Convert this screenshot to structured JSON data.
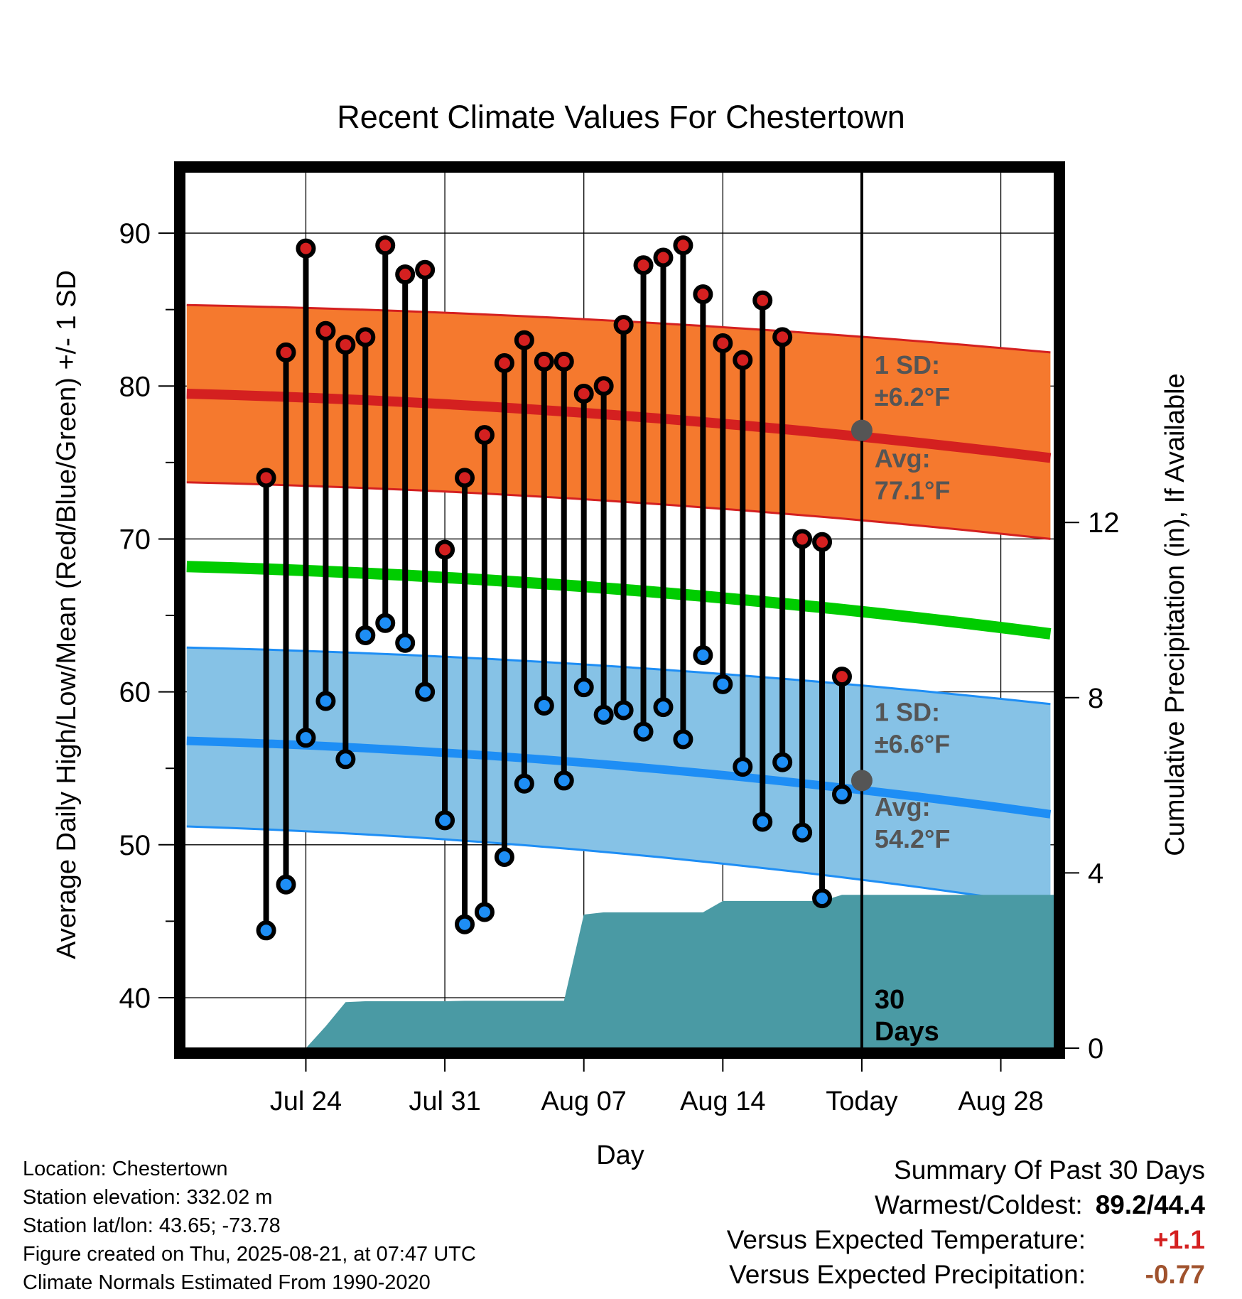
{
  "chart_data": {
    "type": "line",
    "title": "Recent Climate Values For Chestertown",
    "xlabel": "Day",
    "ylabel_left": "Average Daily High/Low/Mean (Red/Blue/Green) +/- 1 SD",
    "ylabel_right": "Cumulative Precipitation (in), If Available",
    "y_left_range": [
      36.7,
      94
    ],
    "y_right_range": [
      0,
      20
    ],
    "y_left_ticks": [
      40,
      50,
      60,
      70,
      80,
      90
    ],
    "y_right_ticks": [
      0,
      4,
      8,
      12
    ],
    "x_range_days": [
      -34.1,
      9.7
    ],
    "x_ticks": [
      {
        "label": "Jul 24",
        "day": -28
      },
      {
        "label": "Jul 31",
        "day": -21
      },
      {
        "label": "Aug 07",
        "day": -14
      },
      {
        "label": "Aug 14",
        "day": -7
      },
      {
        "label": "Today",
        "day": 0
      },
      {
        "label": "Aug 28",
        "day": 7
      }
    ],
    "today_date": "2025-08-21",
    "daily": {
      "day": [
        -30,
        -29,
        -28,
        -27,
        -26,
        -25,
        -24,
        -23,
        -22,
        -21,
        -20,
        -19,
        -18,
        -17,
        -16,
        -15,
        -14,
        -13,
        -12,
        -11,
        -10,
        -9,
        -8,
        -7,
        -6,
        -5,
        -4,
        -3,
        -2,
        -1
      ],
      "high": [
        74.0,
        82.2,
        89.0,
        83.6,
        82.7,
        83.2,
        89.2,
        87.3,
        87.6,
        69.3,
        74.0,
        76.8,
        81.5,
        83.0,
        81.6,
        81.6,
        79.5,
        80.0,
        84.0,
        87.9,
        88.4,
        89.2,
        86.0,
        82.8,
        81.7,
        85.6,
        83.2,
        70.0,
        69.8,
        61.0
      ],
      "low": [
        44.4,
        47.4,
        57.0,
        59.4,
        55.6,
        63.7,
        64.5,
        63.2,
        60.0,
        51.6,
        44.8,
        45.6,
        49.2,
        54.0,
        59.1,
        54.2,
        60.3,
        58.5,
        58.8,
        57.4,
        59.0,
        56.9,
        62.4,
        60.5,
        55.1,
        51.5,
        55.4,
        50.8,
        46.5,
        53.3
      ]
    },
    "normals": {
      "day": [
        -34,
        9.5
      ],
      "avg_high": [
        79.5,
        75.3
      ],
      "avg_high_plus_sd": [
        85.3,
        82.2
      ],
      "avg_high_minus_sd": [
        73.7,
        70.0
      ],
      "avg_mean": [
        68.2,
        63.8
      ],
      "avg_low": [
        56.8,
        52.0
      ],
      "avg_low_plus_sd": [
        62.9,
        59.2
      ],
      "avg_low_minus_sd": [
        51.2,
        46.0
      ]
    },
    "precip_cumulative": {
      "day": [
        -34.1,
        -29,
        -28,
        -27,
        -26,
        -25,
        -24,
        -23,
        -22,
        -21,
        -20,
        -19,
        -18,
        -17,
        -16,
        -15,
        -14,
        -13,
        -12,
        -11,
        -10,
        -9,
        -8,
        -7,
        -6,
        -5,
        -4,
        -3,
        -2,
        -1,
        9.7
      ],
      "value": [
        0,
        0,
        0,
        0.5,
        1.05,
        1.07,
        1.07,
        1.07,
        1.07,
        1.07,
        1.08,
        1.08,
        1.08,
        1.08,
        1.08,
        1.08,
        3.05,
        3.1,
        3.1,
        3.1,
        3.1,
        3.1,
        3.1,
        3.36,
        3.36,
        3.36,
        3.36,
        3.36,
        3.36,
        3.5,
        3.5
      ]
    },
    "annotations": {
      "high_sd_label": "1 SD:",
      "high_sd_value": "±6.2°F",
      "high_avg_label": "Avg:",
      "high_avg_value": "77.1°F",
      "low_sd_label": "1 SD:",
      "low_sd_value": "±6.6°F",
      "low_avg_label": "Avg:",
      "low_avg_value": "54.2°F",
      "period_label_1": "30",
      "period_label_2": "Days"
    },
    "today_markers": {
      "avg_high": 77.1,
      "avg_low": 54.2
    },
    "colors": {
      "high_band": "#f5792e",
      "high_line": "#d42020",
      "mean_line": "#00cc00",
      "low_band": "#86c2e6",
      "low_line": "#1e8ef5",
      "precip": "#4a9aa4",
      "high_dot": "#d42020",
      "low_dot": "#1e8ef5",
      "marker": "#555555",
      "annotation": "#555555"
    }
  },
  "info": {
    "location": "Location: Chestertown",
    "elevation": "Station elevation: 332.02 m",
    "latlon": "Station lat/lon: 43.65; -73.78",
    "created": "Figure created on Thu, 2025-08-21, at 07:47 UTC",
    "normals": "Climate Normals Estimated From 1990-2020"
  },
  "summary": {
    "title": "Summary Of Past 30 Days",
    "warm_cold_label": "Warmest/Coldest:",
    "warm_cold_value": "89.2/44.4",
    "temp_label": "Versus Expected Temperature:",
    "temp_value": "+1.1",
    "temp_color": "#d42020",
    "precip_label": "Versus Expected Precipitation:",
    "precip_value": "-0.77",
    "precip_color": "#a0522d"
  }
}
